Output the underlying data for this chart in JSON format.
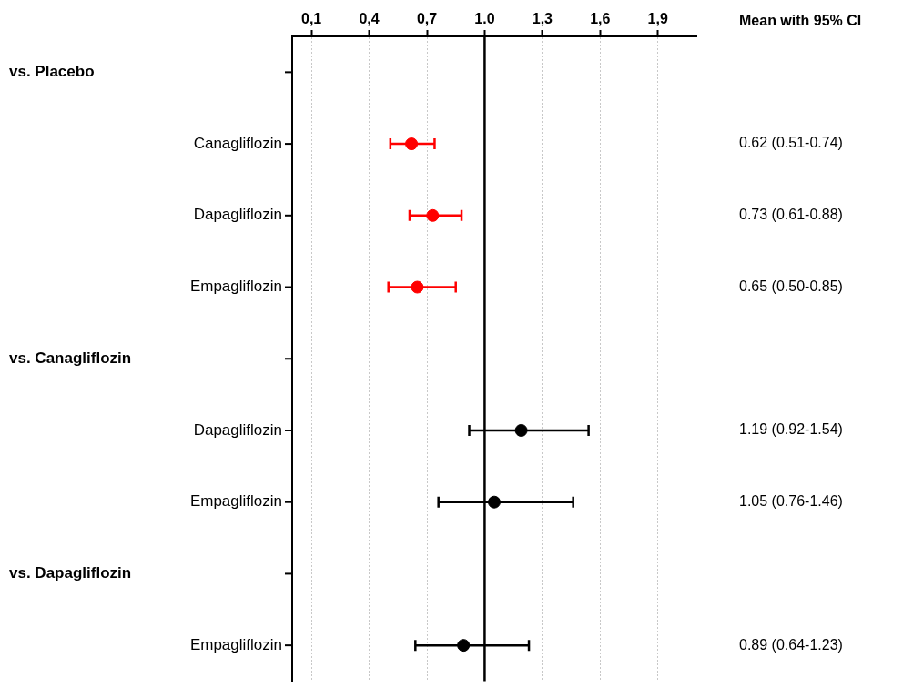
{
  "chart_data": {
    "type": "scatter",
    "orientation": "horizontal",
    "categories": [
      null,
      "Canagliflozin",
      "Dapagliflozin",
      "Empagliflozin",
      null,
      "Dapagliflozin",
      "Empagliflozin",
      null,
      "Empagliflozin"
    ],
    "series": [
      {
        "colors": [
          null,
          "#ff0000",
          "#ff0000",
          "#ff0000",
          null,
          "#000000",
          "#000000",
          null,
          "#000000"
        ],
        "values": [
          null,
          0.62,
          0.73,
          0.65,
          null,
          1.19,
          1.05,
          null,
          0.89
        ],
        "errors": [
          null,
          [
            0.51,
            0.74
          ],
          [
            0.61,
            0.88
          ],
          [
            0.5,
            0.85
          ],
          null,
          [
            0.92,
            1.54
          ],
          [
            0.76,
            1.46
          ],
          null,
          [
            0.64,
            1.23
          ]
        ],
        "value_labels": [
          null,
          "0.62 (0.51-0.74)",
          "0.73 (0.61-0.88)",
          "0.65 (0.50-0.85)",
          null,
          "1.19 (0.92-1.54)",
          "1.05 (0.76-1.46)",
          null,
          "0.89 (0.64-1.23)"
        ]
      }
    ],
    "xlim": [
      0,
      2.1
    ],
    "xticks": [
      {
        "value": 0.1,
        "label": "0,1"
      },
      {
        "value": 0.4,
        "label": "0,4"
      },
      {
        "value": 0.7,
        "label": "0,7"
      },
      {
        "value": 1.0,
        "label": "1.0"
      },
      {
        "value": 1.3,
        "label": "1,3"
      },
      {
        "value": 1.6,
        "label": "1,6"
      },
      {
        "value": 1.9,
        "label": "1,9"
      }
    ],
    "ref_lines": [
      {
        "axis": "x",
        "value": 1.0,
        "color": "#000000"
      }
    ],
    "annotations": [
      "vs. Placebo",
      "vs. Canagliflozin",
      "vs. Dapagliflozin",
      "Mean with 95% CI"
    ],
    "grid": "x",
    "legend": false,
    "marker": "circle"
  }
}
